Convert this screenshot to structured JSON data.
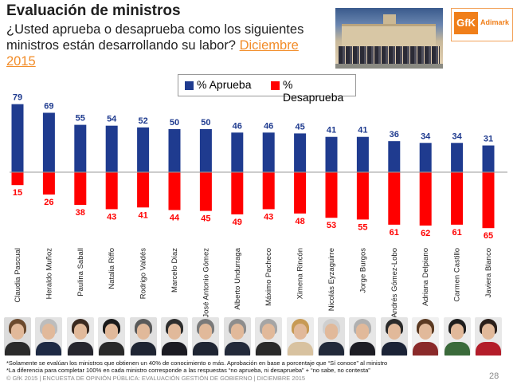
{
  "header": {
    "title": "Evaluación de ministros",
    "question": "¿Usted aprueba o desaprueba como los siguientes ministros están desarrollando su labor?",
    "date_label": "Diciembre 2015"
  },
  "logo": {
    "brand": "GfK",
    "name": "Adimark"
  },
  "colors": {
    "approve": "#1f3b8f",
    "disapprove": "#ff0000",
    "accent": "#f28c28"
  },
  "chart_data": {
    "type": "bar",
    "categories": [
      "Claudia Pascual",
      "Heraldo Muñoz",
      "Paulina Saball",
      "Natalia Riffo",
      "Rodrigo Valdés",
      "Marcelo Díaz",
      "José Antonio Gómez",
      "Alberto Undurraga",
      "Máximo Pacheco",
      "Ximena Rincón",
      "Nicolás Eyzaguirre",
      "Jorge Burgos",
      "Andrés Gómez-Lobo",
      "Adriana Delpiano",
      "Carmen Castillo",
      "Javiera Blanco"
    ],
    "series": [
      {
        "name": "% Aprueba",
        "values": [
          79,
          69,
          55,
          54,
          52,
          50,
          50,
          46,
          46,
          45,
          41,
          41,
          36,
          34,
          34,
          31
        ]
      },
      {
        "name": "% Desaprueba",
        "values": [
          15,
          26,
          38,
          43,
          41,
          44,
          45,
          49,
          43,
          48,
          53,
          55,
          61,
          62,
          61,
          65
        ]
      }
    ],
    "legend_position": "top-center"
  },
  "ministers_photos": [
    {
      "hair": "#6b4a2e",
      "suit": "#2b2b2b",
      "bg": "#dcdcdc"
    },
    {
      "hair": "#bdbdbd",
      "suit": "#1e2a44",
      "bg": "#e3e3e3"
    },
    {
      "hair": "#3b2a20",
      "suit": "#26262e",
      "bg": "#e8e8e8"
    },
    {
      "hair": "#1a1a1a",
      "suit": "#2a2a2a",
      "bg": "#e5e5e5"
    },
    {
      "hair": "#5a5a5a",
      "suit": "#1f2533",
      "bg": "#e0e0e0"
    },
    {
      "hair": "#2d2d2d",
      "suit": "#1b1b22",
      "bg": "#e6e6e6"
    },
    {
      "hair": "#7a7a7a",
      "suit": "#1f2533",
      "bg": "#e4e4e4"
    },
    {
      "hair": "#8d8d8d",
      "suit": "#232a3a",
      "bg": "#e2e2e2"
    },
    {
      "hair": "#a5a5a5",
      "suit": "#2a2a2a",
      "bg": "#e7e7e7"
    },
    {
      "hair": "#c79a55",
      "suit": "#d8c2a0",
      "bg": "#ececec"
    },
    {
      "hair": "#cfcfcf",
      "suit": "#222a3a",
      "bg": "#e1e1e1"
    },
    {
      "hair": "#b0b0b0",
      "suit": "#1d1d24",
      "bg": "#e6e6e6"
    },
    {
      "hair": "#2a2a2a",
      "suit": "#1b2336",
      "bg": "#e3e3e3"
    },
    {
      "hair": "#5b3a22",
      "suit": "#8a2a2a",
      "bg": "#f0f0f0"
    },
    {
      "hair": "#1e1e1e",
      "suit": "#3a6a3a",
      "bg": "#ebebeb"
    },
    {
      "hair": "#2a1f1a",
      "suit": "#b31d2a",
      "bg": "#e8e8e8"
    }
  ],
  "footnotes": [
    "*Solamente se evalúan los ministros que obtienen un 40% de conocimiento o más. Aprobación en base a porcentaje que “Sí conoce” al ministro",
    "*La diferencia para completar 100% en cada ministro corresponde a las respuestas “no aprueba, ni desaprueba” + “no sabe, no contesta”"
  ],
  "footer": "© GfK 2015 | ENCUESTA DE OPINIÓN PÚBLICA: EVALUACIÓN GESTIÓN DE GOBIERNO | DICIEMBRE 2015",
  "page_number": "28"
}
